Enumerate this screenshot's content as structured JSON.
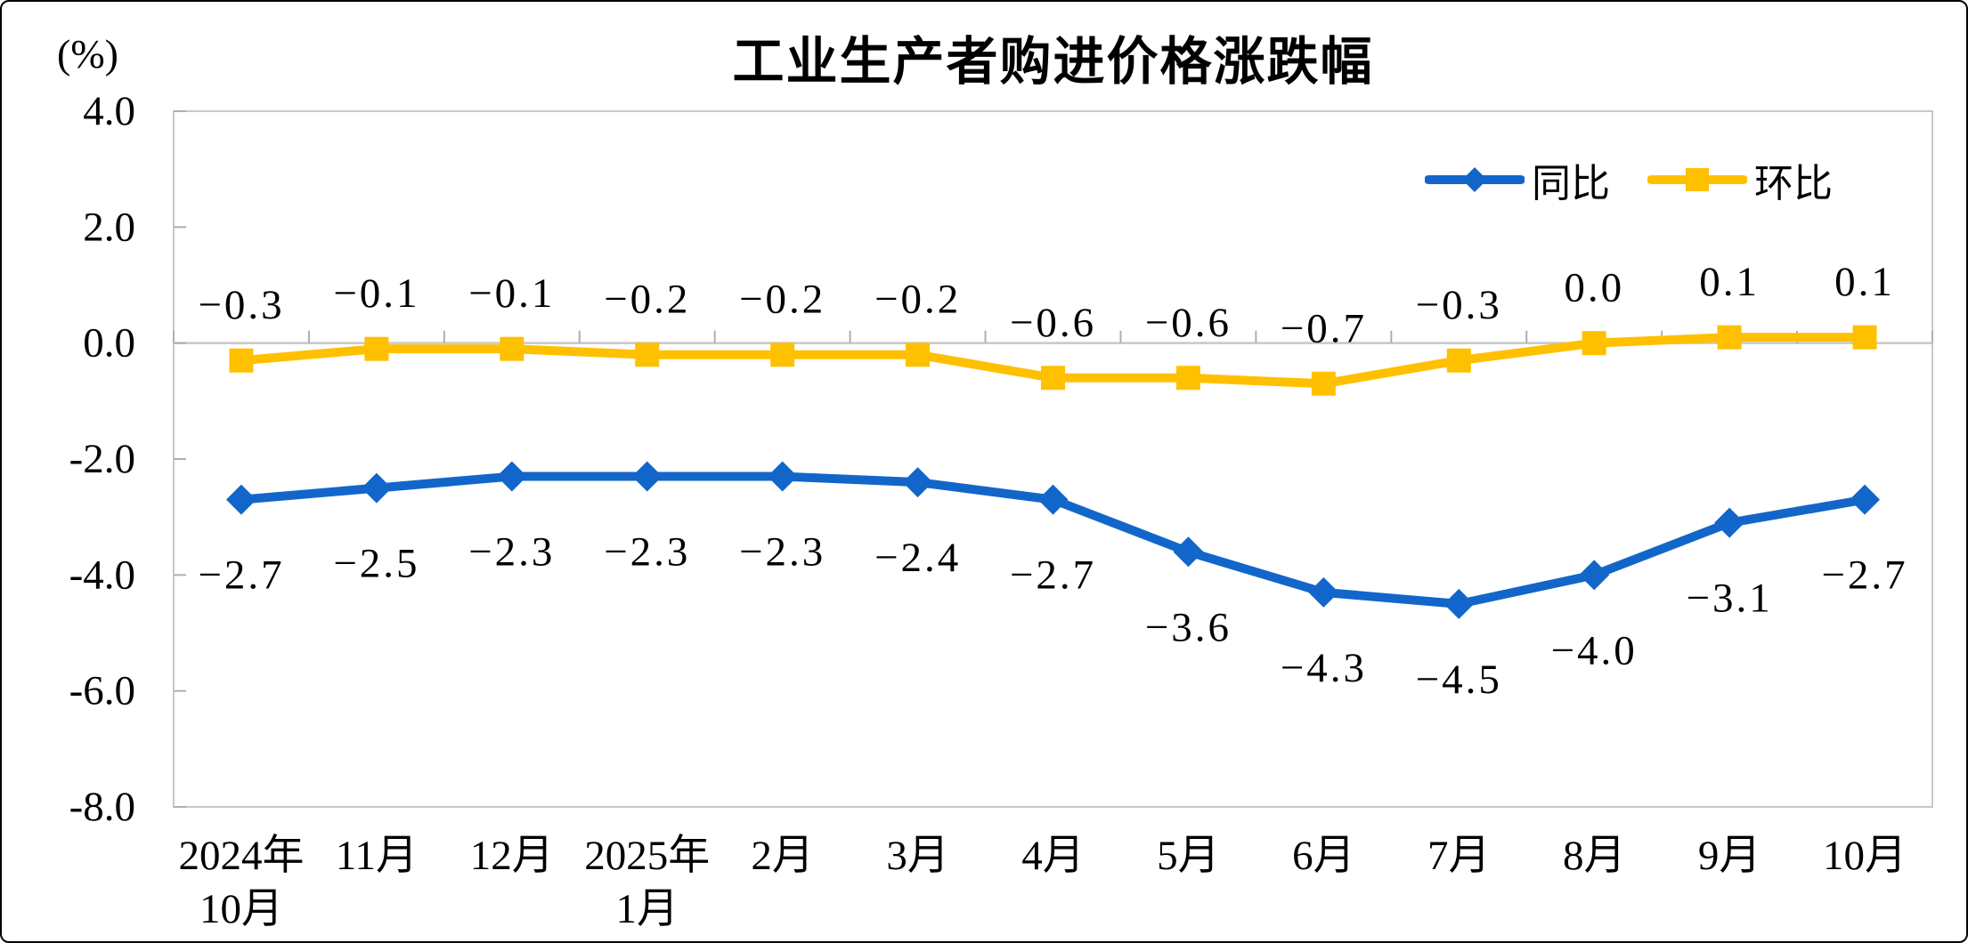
{
  "title": "工业生产者购进价格涨跌幅",
  "unit_label": "(%)",
  "legend": {
    "position": "top-right",
    "items": [
      {
        "label": "同比",
        "marker": "diamond"
      },
      {
        "label": "环比",
        "marker": "square"
      }
    ]
  },
  "colors": {
    "yoy_blue": "#1366C9",
    "mom_gold": "#FFC000",
    "axis_gray": "#C8C8C8",
    "tick_gray": "#AFAFAF",
    "text_black": "#000000"
  },
  "chart_data": {
    "type": "line",
    "title": "工业生产者购进价格涨跌幅",
    "ylabel": "(%)",
    "categories": [
      [
        "2024年",
        "10月"
      ],
      [
        "11月"
      ],
      [
        "12月"
      ],
      [
        "2025年",
        "1月"
      ],
      [
        "2月"
      ],
      [
        "3月"
      ],
      [
        "4月"
      ],
      [
        "5月"
      ],
      [
        "6月"
      ],
      [
        "7月"
      ],
      [
        "8月"
      ],
      [
        "9月"
      ],
      [
        "10月"
      ]
    ],
    "series": [
      {
        "name": "同比",
        "key": "yoy",
        "color": "#1366C9",
        "marker": "diamond",
        "label_position": "below",
        "values": [
          -2.7,
          -2.5,
          -2.3,
          -2.3,
          -2.3,
          -2.4,
          -2.7,
          -3.6,
          -4.3,
          -4.5,
          -4.0,
          -3.1,
          -2.7
        ]
      },
      {
        "name": "环比",
        "key": "mom",
        "color": "#FFC000",
        "marker": "square",
        "label_position": "above",
        "values": [
          -0.3,
          -0.1,
          -0.1,
          -0.2,
          -0.2,
          -0.2,
          -0.6,
          -0.6,
          -0.7,
          -0.3,
          0.0,
          0.1,
          0.1
        ]
      }
    ],
    "ylim": [
      -8.0,
      4.0
    ],
    "ytick_step": 2.0,
    "ytick_labels": [
      "4.0",
      "2.0",
      "0.0",
      "-2.0",
      "-4.0",
      "-6.0",
      "-8.0"
    ],
    "grid": false,
    "data_labels": true,
    "legend_position": "top-right"
  }
}
